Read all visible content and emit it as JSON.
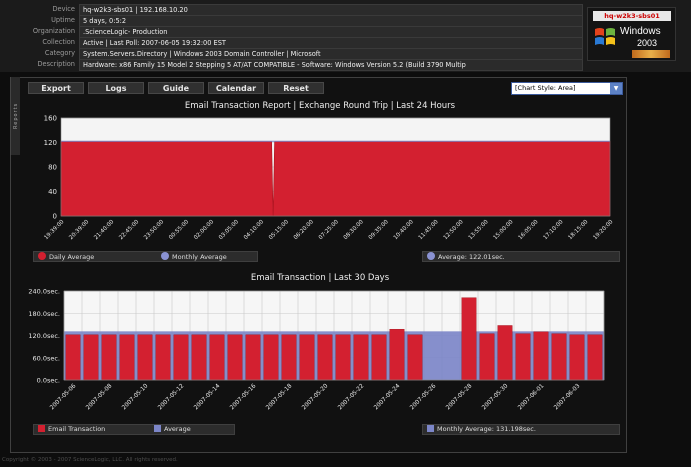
{
  "device_info": {
    "rows": [
      {
        "label": "Device",
        "value": "hq-w2k3-sbs01 | 192.168.10.20"
      },
      {
        "label": "Uptime",
        "value": "5 days, 0:5:2"
      },
      {
        "label": "Organization",
        "value": ".ScienceLogic- Production"
      },
      {
        "label": "Collection",
        "value": "Active | Last Poll: 2007-06-05 19:32:00 EST"
      },
      {
        "label": "Category",
        "value": "System.Servers.Directory | Windows 2003 Domain Controller | Microsoft"
      },
      {
        "label": "Description",
        "value": "Hardware: x86 Family 15 Model 2 Stepping 5 AT/AT COMPATIBLE - Software: Windows Version 5.2 (Build 3790 Multip"
      }
    ]
  },
  "os_badge": {
    "title": "hq-w2k3-sbs01",
    "brand": "Windows",
    "version": "2003"
  },
  "side_tab": {
    "label": "Reports"
  },
  "toolbar": {
    "buttons": [
      "Export",
      "Logs",
      "Guide",
      "Calendar",
      "Reset"
    ],
    "chart_style": "[Chart Style: Area]"
  },
  "colors": {
    "primary": "#d32030",
    "average_line": "#7c86c8",
    "accent_blue": "#5d82c6"
  },
  "chart_data": [
    {
      "type": "area",
      "title": "Email Transaction Report | Exchange Round Trip |  Last 24 Hours",
      "ylim": [
        0,
        160
      ],
      "yticks": [
        "0",
        "40",
        "80",
        "120",
        "160"
      ],
      "x": [
        "19:39:00",
        "20:39:00",
        "21:40:00",
        "22:45:00",
        "23:50:00",
        "00:55:00",
        "02:00:00",
        "03:05:00",
        "04:10:00",
        "05:15:00",
        "06:20:00",
        "07:25:00",
        "08:30:00",
        "09:35:00",
        "10:40:00",
        "11:45:00",
        "12:50:00",
        "13:55:00",
        "15:00:00",
        "16:05:00",
        "17:10:00",
        "18:15:00",
        "19:20:00"
      ],
      "series": [
        {
          "name": "Daily Average",
          "values": [
            122,
            122,
            122,
            122,
            122,
            122,
            122,
            122,
            122,
            0,
            122,
            122,
            122,
            122,
            122,
            122,
            122,
            122,
            122,
            122,
            122,
            122,
            122
          ]
        },
        {
          "name": "Monthly Average",
          "values": [
            122,
            122,
            122,
            122,
            122,
            122,
            122,
            122,
            122,
            122,
            122,
            122,
            122,
            122,
            122,
            122,
            122,
            122,
            122,
            122,
            122,
            122,
            122
          ]
        }
      ],
      "dip_position": 8.5,
      "legend": {
        "daily": "Daily Average",
        "monthly": "Monthly Average",
        "average": "Average: 122.01sec."
      }
    },
    {
      "type": "bar",
      "title": "Email Transaction | Last 30 Days",
      "ylim": [
        0,
        240
      ],
      "yticks": [
        "0.0sec.",
        "60.0sec.",
        "120.0sec.",
        "180.0sec.",
        "240.0sec."
      ],
      "categories": [
        "2007-05-06",
        "2007-05-07",
        "2007-05-08",
        "2007-05-09",
        "2007-05-10",
        "2007-05-11",
        "2007-05-12",
        "2007-05-13",
        "2007-05-14",
        "2007-05-15",
        "2007-05-16",
        "2007-05-17",
        "2007-05-18",
        "2007-05-19",
        "2007-05-20",
        "2007-05-21",
        "2007-05-22",
        "2007-05-23",
        "2007-05-24",
        "2007-05-25",
        "2007-05-26",
        "2007-05-27",
        "2007-05-28",
        "2007-05-29",
        "2007-05-30",
        "2007-05-31",
        "2007-06-01",
        "2007-06-02",
        "2007-06-03",
        "2007-06-04"
      ],
      "tick_labels_shown": [
        "2007-05-06",
        "2007-05-08",
        "2007-05-10",
        "2007-05-12",
        "2007-05-14",
        "2007-05-16",
        "2007-05-18",
        "2007-05-20",
        "2007-05-22",
        "2007-05-24",
        "2007-05-26",
        "2007-05-28",
        "2007-05-30",
        "2007-06-01",
        "2007-06-03"
      ],
      "series": [
        {
          "name": "Email Transaction",
          "values": [
            122,
            122,
            122,
            122,
            122,
            122,
            122,
            122,
            122,
            122,
            122,
            122,
            122,
            122,
            122,
            122,
            122,
            122,
            137,
            122,
            0,
            0,
            222,
            125,
            147,
            125,
            130,
            125,
            122,
            122
          ]
        },
        {
          "name": "Average",
          "values": [
            131.2,
            131.2,
            131.2,
            131.2,
            131.2,
            131.2,
            131.2,
            131.2,
            131.2,
            131.2,
            131.2,
            131.2,
            131.2,
            131.2,
            131.2,
            131.2,
            131.2,
            131.2,
            131.2,
            131.2,
            131.2,
            131.2,
            131.2,
            131.2,
            131.2,
            131.2,
            131.2,
            131.2,
            131.2,
            131.2
          ]
        }
      ],
      "legend": {
        "email": "Email Transaction",
        "average": "Average",
        "monthly": "Monthly Average: 131.198sec."
      }
    }
  ],
  "footer": "Copyright © 2003 - 2007 ScienceLogic, LLC. All rights reserved."
}
